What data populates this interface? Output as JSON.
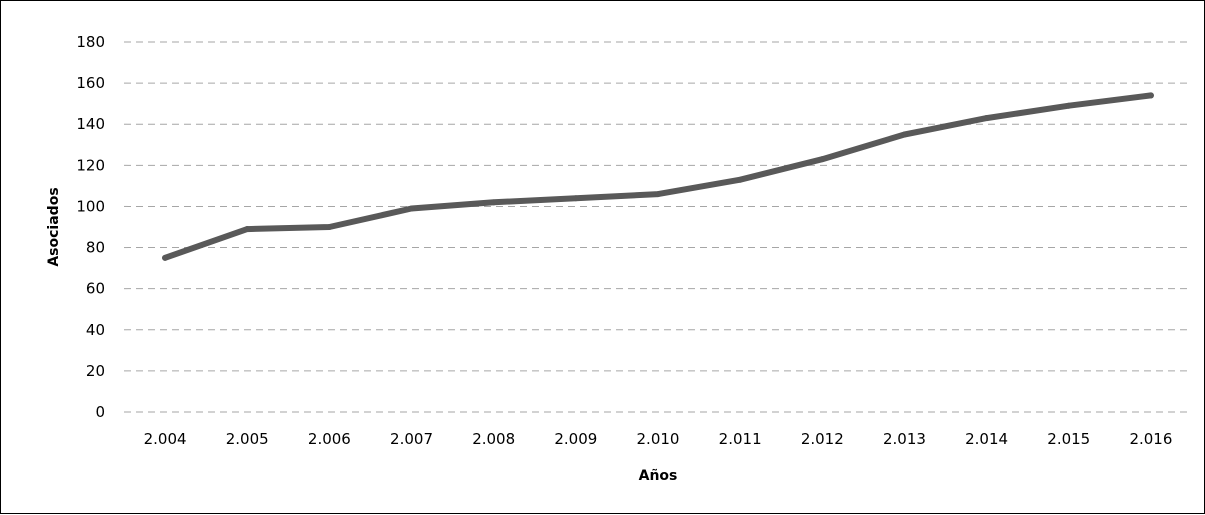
{
  "chart_data": {
    "type": "line",
    "title": "",
    "xlabel": "Años",
    "ylabel": "Asociados",
    "categories": [
      "2.004",
      "2.005",
      "2.006",
      "2.007",
      "2.008",
      "2.009",
      "2.010",
      "2.011",
      "2.012",
      "2.013",
      "2.014",
      "2.015",
      "2.016"
    ],
    "series": [
      {
        "values": [
          75,
          89,
          90,
          99,
          102,
          104,
          106,
          113,
          123,
          135,
          143,
          149,
          154
        ]
      }
    ],
    "ylim": [
      0,
      180
    ],
    "yticks": [
      0,
      20,
      40,
      60,
      80,
      100,
      120,
      140,
      160,
      180
    ],
    "grid": true,
    "legend": "none",
    "colors": {
      "line": "#595959",
      "grid": "#a6a6a6",
      "axis": "#000000"
    }
  }
}
